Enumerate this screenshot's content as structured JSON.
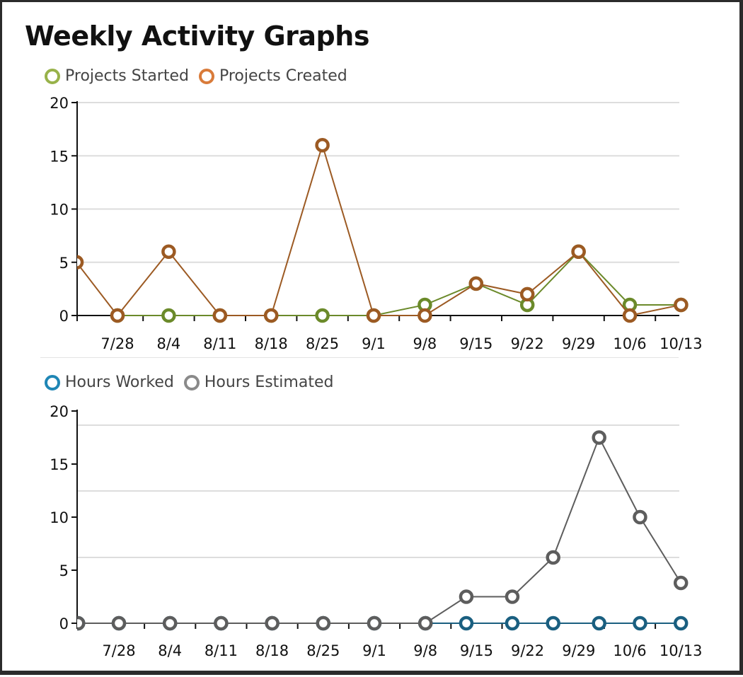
{
  "page": {
    "title": "Weekly Activity Graphs"
  },
  "chart_data": [
    {
      "type": "line",
      "title": "",
      "xlabel": "",
      "ylabel": "",
      "ylim": [
        0,
        20
      ],
      "yticks": [
        "0",
        "5",
        "10",
        "15",
        "20"
      ],
      "categories": [
        "7/28",
        "8/4",
        "8/11",
        "8/18",
        "8/25",
        "9/1",
        "9/8",
        "9/15",
        "9/22",
        "9/29",
        "10/6",
        "10/13"
      ],
      "legend_position": "top-left",
      "grid": true,
      "series": [
        {
          "name": "Projects Started",
          "color": "#98b24a",
          "line_color": "#6b8a2a",
          "points": [
            {
              "x": 0.0,
              "y": 0
            },
            {
              "x": 1.0,
              "y": 0
            },
            {
              "x": 2.0,
              "y": 0
            },
            {
              "x": 3.0,
              "y": 0
            },
            {
              "x": 4.0,
              "y": 0
            },
            {
              "x": 5.0,
              "y": 0
            },
            {
              "x": 6.0,
              "y": 1
            },
            {
              "x": 7.0,
              "y": 3
            },
            {
              "x": 8.0,
              "y": 1
            },
            {
              "x": 9.0,
              "y": 6
            },
            {
              "x": 10.0,
              "y": 1
            },
            {
              "x": 11.0,
              "y": 1
            }
          ]
        },
        {
          "name": "Projects Created",
          "color": "#d97b3a",
          "line_color": "#9c5a23",
          "points": [
            {
              "x": -0.8,
              "y": 5
            },
            {
              "x": 0.0,
              "y": 0
            },
            {
              "x": 1.0,
              "y": 6
            },
            {
              "x": 2.0,
              "y": 0
            },
            {
              "x": 3.0,
              "y": 0
            },
            {
              "x": 4.0,
              "y": 16
            },
            {
              "x": 5.0,
              "y": 0
            },
            {
              "x": 6.0,
              "y": 0
            },
            {
              "x": 7.0,
              "y": 3
            },
            {
              "x": 8.0,
              "y": 2
            },
            {
              "x": 9.0,
              "y": 6
            },
            {
              "x": 10.0,
              "y": 0
            },
            {
              "x": 11.0,
              "y": 1
            }
          ]
        }
      ]
    },
    {
      "type": "line",
      "title": "",
      "xlabel": "",
      "ylabel": "",
      "ylim": [
        0,
        20
      ],
      "yticks": [
        "0",
        "5",
        "10",
        "15",
        "20"
      ],
      "categories": [
        "7/28",
        "8/4",
        "8/11",
        "8/18",
        "8/25",
        "9/1",
        "9/8",
        "9/15",
        "9/22",
        "9/29",
        "10/6",
        "10/13"
      ],
      "legend_position": "top-left",
      "grid": true,
      "series": [
        {
          "name": "Hours Worked",
          "color": "#1f86b5",
          "line_color": "#1a5f80",
          "points": [
            {
              "x": -0.8,
              "y": 0
            },
            {
              "x": 0.0,
              "y": 0
            },
            {
              "x": 1.0,
              "y": 0
            },
            {
              "x": 2.0,
              "y": 0
            },
            {
              "x": 3.0,
              "y": 0
            },
            {
              "x": 4.0,
              "y": 0
            },
            {
              "x": 5.0,
              "y": 0
            },
            {
              "x": 6.0,
              "y": 0
            },
            {
              "x": 6.8,
              "y": 0
            },
            {
              "x": 7.7,
              "y": 0
            },
            {
              "x": 8.5,
              "y": 0
            },
            {
              "x": 9.4,
              "y": 0
            },
            {
              "x": 10.2,
              "y": 0
            },
            {
              "x": 11.0,
              "y": 0
            }
          ]
        },
        {
          "name": "Hours Estimated",
          "color": "#8a8a8a",
          "line_color": "#5d5d5d",
          "points": [
            {
              "x": -0.8,
              "y": 0
            },
            {
              "x": 0.0,
              "y": 0
            },
            {
              "x": 1.0,
              "y": 0
            },
            {
              "x": 2.0,
              "y": 0
            },
            {
              "x": 3.0,
              "y": 0
            },
            {
              "x": 4.0,
              "y": 0
            },
            {
              "x": 5.0,
              "y": 0
            },
            {
              "x": 6.0,
              "y": 0
            },
            {
              "x": 6.8,
              "y": 2.5
            },
            {
              "x": 7.7,
              "y": 2.5
            },
            {
              "x": 8.5,
              "y": 6.2
            },
            {
              "x": 9.4,
              "y": 17.5
            },
            {
              "x": 10.2,
              "y": 10
            },
            {
              "x": 11.0,
              "y": 3.8
            }
          ]
        }
      ]
    }
  ]
}
